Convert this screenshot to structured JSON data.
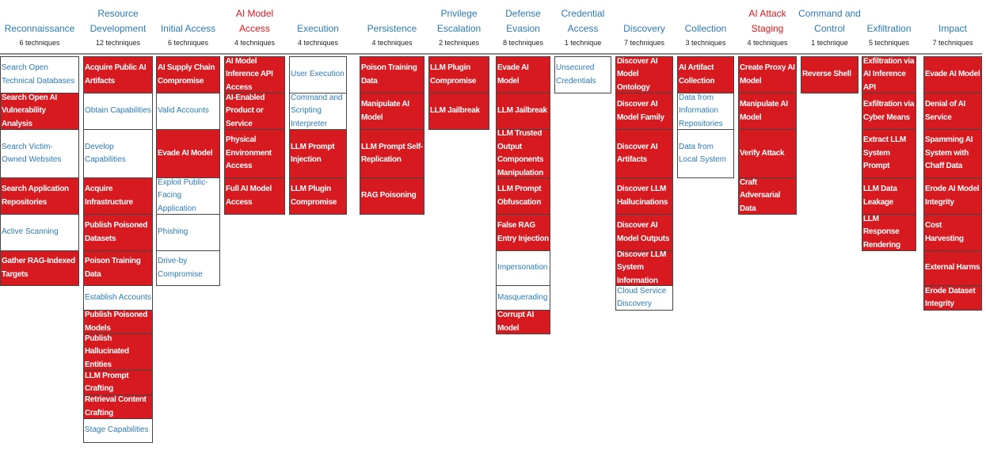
{
  "colors": {
    "highlight": "#d71920",
    "link": "#2a7ab8"
  },
  "columns": [
    {
      "title": "Reconnaissance",
      "count": "6 techniques",
      "title_red": false,
      "techniques": [
        {
          "name": "Search Open Technical Databases",
          "hl": false
        },
        {
          "name": "Search Open AI Vulnerability Analysis",
          "hl": true
        },
        {
          "name": "Search Victim-Owned Websites",
          "hl": false
        },
        {
          "name": "Search Application Repositories",
          "hl": true
        },
        {
          "name": "Active Scanning",
          "hl": false
        },
        {
          "name": "Gather RAG-Indexed Targets",
          "hl": true
        }
      ]
    },
    {
      "title": "Resource Development",
      "count": "12 techniques",
      "title_red": false,
      "techniques": [
        {
          "name": "Acquire Public AI Artifacts",
          "hl": true
        },
        {
          "name": "Obtain Capabilities",
          "hl": false
        },
        {
          "name": "Develop Capabilities",
          "hl": false
        },
        {
          "name": "Acquire Infrastructure",
          "hl": true
        },
        {
          "name": "Publish Poisoned Datasets",
          "hl": true
        },
        {
          "name": "Poison Training Data",
          "hl": true
        },
        {
          "name": "Establish Accounts",
          "hl": false
        },
        {
          "name": "Publish Poisoned Models",
          "hl": true
        },
        {
          "name": "Publish Hallucinated Entities",
          "hl": true
        },
        {
          "name": "LLM Prompt Crafting",
          "hl": true
        },
        {
          "name": "Retrieval Content Crafting",
          "hl": true
        },
        {
          "name": "Stage Capabilities",
          "hl": false
        }
      ]
    },
    {
      "title": "Initial Access",
      "count": "6 techniques",
      "title_red": false,
      "techniques": [
        {
          "name": "AI Supply Chain Compromise",
          "hl": true
        },
        {
          "name": "Valid Accounts",
          "hl": false
        },
        {
          "name": "Evade AI Model",
          "hl": true
        },
        {
          "name": "Exploit Public-Facing Application",
          "hl": false
        },
        {
          "name": "Phishing",
          "hl": false
        },
        {
          "name": "Drive-by Compromise",
          "hl": false
        }
      ]
    },
    {
      "title": "AI Model Access",
      "count": "4 techniques",
      "title_red": true,
      "techniques": [
        {
          "name": "AI Model Inference API Access",
          "hl": true
        },
        {
          "name": "AI-Enabled Product or Service",
          "hl": true
        },
        {
          "name": "Physical Environment Access",
          "hl": true
        },
        {
          "name": "Full AI Model Access",
          "hl": true
        }
      ]
    },
    {
      "title": "Execution",
      "count": "4 techniques",
      "title_red": false,
      "techniques": [
        {
          "name": "User Execution",
          "hl": false
        },
        {
          "name": "Command and Scripting Interpreter",
          "hl": false
        },
        {
          "name": "LLM Prompt Injection",
          "hl": true
        },
        {
          "name": "LLM Plugin Compromise",
          "hl": true
        }
      ]
    },
    {
      "title": "Persistence",
      "count": "4 techniques",
      "title_red": false,
      "techniques": [
        {
          "name": "Poison Training Data",
          "hl": true
        },
        {
          "name": "Manipulate AI Model",
          "hl": true
        },
        {
          "name": "LLM Prompt Self-Replication",
          "hl": true
        },
        {
          "name": "RAG Poisoning",
          "hl": true
        }
      ]
    },
    {
      "title": "Privilege Escalation",
      "count": "2 techniques",
      "title_red": false,
      "techniques": [
        {
          "name": "LLM Plugin Compromise",
          "hl": true
        },
        {
          "name": "LLM Jailbreak",
          "hl": true
        }
      ]
    },
    {
      "title": "Defense Evasion",
      "count": "8 techniques",
      "title_red": false,
      "techniques": [
        {
          "name": "Evade AI Model",
          "hl": true
        },
        {
          "name": "LLM Jailbreak",
          "hl": true
        },
        {
          "name": "LLM Trusted Output Components Manipulation",
          "hl": true
        },
        {
          "name": "LLM Prompt Obfuscation",
          "hl": true
        },
        {
          "name": "False RAG Entry Injection",
          "hl": true
        },
        {
          "name": "Impersonation",
          "hl": false
        },
        {
          "name": "Masquerading",
          "hl": false
        },
        {
          "name": "Corrupt AI Model",
          "hl": true
        }
      ]
    },
    {
      "title": "Credential Access",
      "count": "1 technique",
      "title_red": false,
      "techniques": [
        {
          "name": "Unsecured Credentials",
          "hl": false
        }
      ]
    },
    {
      "title": "Discovery",
      "count": "7 techniques",
      "title_red": false,
      "techniques": [
        {
          "name": "Discover AI Model Ontology",
          "hl": true
        },
        {
          "name": "Discover AI Model Family",
          "hl": true
        },
        {
          "name": "Discover AI Artifacts",
          "hl": true
        },
        {
          "name": "Discover LLM Hallucinations",
          "hl": true
        },
        {
          "name": "Discover AI Model Outputs",
          "hl": true
        },
        {
          "name": "Discover LLM System Information",
          "hl": true
        },
        {
          "name": "Cloud Service Discovery",
          "hl": false
        }
      ]
    },
    {
      "title": "Collection",
      "count": "3 techniques",
      "title_red": false,
      "techniques": [
        {
          "name": "AI Artifact Collection",
          "hl": true
        },
        {
          "name": "Data from Information Repositories",
          "hl": false
        },
        {
          "name": "Data from Local System",
          "hl": false
        }
      ]
    },
    {
      "title": "AI Attack Staging",
      "count": "4 techniques",
      "title_red": true,
      "techniques": [
        {
          "name": "Create Proxy AI Model",
          "hl": true
        },
        {
          "name": "Manipulate AI Model",
          "hl": true
        },
        {
          "name": "Verify Attack",
          "hl": true
        },
        {
          "name": "Craft Adversarial Data",
          "hl": true
        }
      ]
    },
    {
      "title": "Command and Control",
      "count": "1 technique",
      "title_red": false,
      "techniques": [
        {
          "name": "Reverse Shell",
          "hl": true
        }
      ]
    },
    {
      "title": "Exfiltration",
      "count": "5 techniques",
      "title_red": false,
      "techniques": [
        {
          "name": "Exfiltration via AI Inference API",
          "hl": true
        },
        {
          "name": "Exfiltration via Cyber Means",
          "hl": true
        },
        {
          "name": "Extract LLM System Prompt",
          "hl": true
        },
        {
          "name": "LLM Data Leakage",
          "hl": true
        },
        {
          "name": "LLM Response Rendering",
          "hl": true
        }
      ]
    },
    {
      "title": "Impact",
      "count": "7 techniques",
      "title_red": false,
      "techniques": [
        {
          "name": "Evade AI Model",
          "hl": true
        },
        {
          "name": "Denial of AI Service",
          "hl": true
        },
        {
          "name": "Spamming AI System with Chaff Data",
          "hl": true
        },
        {
          "name": "Erode AI Model Integrity",
          "hl": true
        },
        {
          "name": "Cost Harvesting",
          "hl": true
        },
        {
          "name": "External Harms",
          "hl": true
        },
        {
          "name": "Erode Dataset Integrity",
          "hl": true
        }
      ]
    }
  ]
}
